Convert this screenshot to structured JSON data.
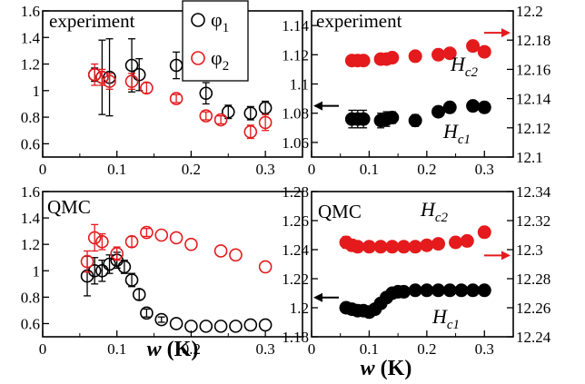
{
  "colors": {
    "phi1": "#000000",
    "phi2": "#e41a1c",
    "hc1": "#000000",
    "hc2": "#e41a1c",
    "arrow_hc1": "#000000",
    "arrow_hc2": "#e41a1c"
  },
  "xlabel": {
    "w": "w",
    "unit": " (K)"
  },
  "legend": {
    "placement": "top-right",
    "items": [
      {
        "symbol": "φ",
        "sub": "1",
        "series": "phi1"
      },
      {
        "symbol": "φ",
        "sub": "2",
        "series": "phi2"
      }
    ]
  },
  "chart_data": [
    {
      "id": "tl",
      "type": "scatter",
      "label": "experiment",
      "xlim": [
        0,
        0.35
      ],
      "ylim": [
        0.5,
        1.6
      ],
      "xticks": [
        "0",
        "0.1",
        "0.2",
        "0.3"
      ],
      "yticks": [
        "0.6",
        "0.8",
        "1",
        "1.2",
        "1.4",
        "1.6"
      ],
      "series": [
        {
          "key": "phi1",
          "name": "φ1",
          "style": "open",
          "points": [
            {
              "x": 0.07,
              "y": 1.12,
              "err": 0.05
            },
            {
              "x": 0.08,
              "y": 1.1,
              "err": 0.28
            },
            {
              "x": 0.09,
              "y": 1.1,
              "err": 0.29
            },
            {
              "x": 0.12,
              "y": 1.19,
              "err": 0.2
            },
            {
              "x": 0.13,
              "y": 1.12,
              "err": 0.12
            },
            {
              "x": 0.18,
              "y": 1.19,
              "err": 0.1
            },
            {
              "x": 0.22,
              "y": 0.98,
              "err": 0.08
            },
            {
              "x": 0.25,
              "y": 0.84,
              "err": 0.05
            },
            {
              "x": 0.28,
              "y": 0.83,
              "err": 0.05
            },
            {
              "x": 0.3,
              "y": 0.87,
              "err": 0.05
            }
          ]
        },
        {
          "key": "phi2",
          "name": "φ2",
          "style": "open",
          "points": [
            {
              "x": 0.07,
              "y": 1.12,
              "err": 0.08
            },
            {
              "x": 0.08,
              "y": 1.1,
              "err": 0.06
            },
            {
              "x": 0.09,
              "y": 1.07,
              "err": 0.06
            },
            {
              "x": 0.12,
              "y": 1.07,
              "err": 0.06
            },
            {
              "x": 0.14,
              "y": 1.02,
              "err": 0.04
            },
            {
              "x": 0.18,
              "y": 0.94,
              "err": 0.03
            },
            {
              "x": 0.22,
              "y": 0.81,
              "err": 0.03
            },
            {
              "x": 0.24,
              "y": 0.78,
              "err": 0.03
            },
            {
              "x": 0.28,
              "y": 0.69,
              "err": 0.05
            },
            {
              "x": 0.3,
              "y": 0.76,
              "err": 0.06
            }
          ]
        }
      ]
    },
    {
      "id": "tr",
      "type": "scatter",
      "label": "experiment",
      "xlim": [
        0,
        0.35
      ],
      "ylim": [
        1.05,
        1.15
      ],
      "ylim_right": [
        12.1,
        12.2
      ],
      "xticks": [
        "0",
        "0.1",
        "0.2",
        "0.3"
      ],
      "yticks": [
        "1.06",
        "1.08",
        "1.1",
        "1.12",
        "1.14"
      ],
      "yticks_right": [
        "12.1",
        "12.12",
        "12.14",
        "12.16",
        "12.18",
        "12.2"
      ],
      "series": [
        {
          "key": "hc1",
          "label": "H",
          "sub": "c1",
          "axis": "left",
          "style": "filled",
          "points": [
            {
              "x": 0.07,
              "y": 1.076,
              "err": 0.006
            },
            {
              "x": 0.08,
              "y": 1.076,
              "err": 0.006
            },
            {
              "x": 0.09,
              "y": 1.076,
              "err": 0.006
            },
            {
              "x": 0.12,
              "y": 1.075,
              "err": 0.005
            },
            {
              "x": 0.13,
              "y": 1.076,
              "err": 0.005
            },
            {
              "x": 0.14,
              "y": 1.077,
              "err": 0.004
            },
            {
              "x": 0.18,
              "y": 1.075,
              "err": 0.004
            },
            {
              "x": 0.22,
              "y": 1.081,
              "err": 0.003
            },
            {
              "x": 0.24,
              "y": 1.084,
              "err": 0.003
            },
            {
              "x": 0.28,
              "y": 1.085,
              "err": 0.003
            },
            {
              "x": 0.3,
              "y": 1.084,
              "err": 0.003
            }
          ]
        },
        {
          "key": "hc2",
          "label": "H",
          "sub": "c2",
          "axis": "right",
          "style": "filled",
          "points": [
            {
              "x": 0.07,
              "y": 12.166
            },
            {
              "x": 0.08,
              "y": 12.166
            },
            {
              "x": 0.09,
              "y": 12.166
            },
            {
              "x": 0.12,
              "y": 12.167
            },
            {
              "x": 0.13,
              "y": 12.167
            },
            {
              "x": 0.14,
              "y": 12.168
            },
            {
              "x": 0.18,
              "y": 12.169
            },
            {
              "x": 0.22,
              "y": 12.17
            },
            {
              "x": 0.24,
              "y": 12.171
            },
            {
              "x": 0.28,
              "y": 12.176
            },
            {
              "x": 0.3,
              "y": 12.172
            }
          ]
        }
      ],
      "arrows": {
        "hc1": {
          "y": 1.085,
          "dir": "left"
        },
        "hc2": {
          "y": 12.185,
          "dir": "right"
        }
      }
    },
    {
      "id": "bl",
      "type": "scatter",
      "label": "QMC",
      "xlim": [
        0,
        0.35
      ],
      "ylim": [
        0.5,
        1.6
      ],
      "xticks": [
        "0",
        "0.1",
        "0.2",
        "0.3"
      ],
      "yticks": [
        "0.6",
        "0.8",
        "1",
        "1.2",
        "1.4",
        "1.6"
      ],
      "series": [
        {
          "key": "phi1",
          "name": "φ1",
          "style": "open",
          "points": [
            {
              "x": 0.06,
              "y": 0.96,
              "err": 0.15
            },
            {
              "x": 0.07,
              "y": 1.0,
              "err": 0.1
            },
            {
              "x": 0.08,
              "y": 1.0,
              "err": 0.08
            },
            {
              "x": 0.09,
              "y": 1.05,
              "err": 0.07
            },
            {
              "x": 0.1,
              "y": 1.08,
              "err": 0.06
            },
            {
              "x": 0.11,
              "y": 1.03,
              "err": 0.05
            },
            {
              "x": 0.12,
              "y": 0.93,
              "err": 0.05
            },
            {
              "x": 0.13,
              "y": 0.82,
              "err": 0.04
            },
            {
              "x": 0.14,
              "y": 0.68,
              "err": 0.03
            },
            {
              "x": 0.16,
              "y": 0.63,
              "err": 0.02
            },
            {
              "x": 0.18,
              "y": 0.6
            },
            {
              "x": 0.2,
              "y": 0.58
            },
            {
              "x": 0.22,
              "y": 0.58
            },
            {
              "x": 0.24,
              "y": 0.58
            },
            {
              "x": 0.26,
              "y": 0.58
            },
            {
              "x": 0.28,
              "y": 0.59
            },
            {
              "x": 0.3,
              "y": 0.59
            }
          ]
        },
        {
          "key": "phi2",
          "name": "φ2",
          "style": "open",
          "points": [
            {
              "x": 0.06,
              "y": 1.07,
              "err": 0.08
            },
            {
              "x": 0.07,
              "y": 1.25,
              "err": 0.1
            },
            {
              "x": 0.08,
              "y": 1.22,
              "err": 0.06
            },
            {
              "x": 0.1,
              "y": 1.13,
              "err": 0.05
            },
            {
              "x": 0.12,
              "y": 1.22,
              "err": 0.04
            },
            {
              "x": 0.14,
              "y": 1.29,
              "err": 0.03
            },
            {
              "x": 0.16,
              "y": 1.27
            },
            {
              "x": 0.18,
              "y": 1.25
            },
            {
              "x": 0.2,
              "y": 1.2
            },
            {
              "x": 0.24,
              "y": 1.15
            },
            {
              "x": 0.26,
              "y": 1.12
            },
            {
              "x": 0.3,
              "y": 1.03
            }
          ]
        }
      ]
    },
    {
      "id": "br",
      "type": "scatter",
      "label": "QMC",
      "xlim": [
        0,
        0.35
      ],
      "ylim": [
        1.18,
        1.28
      ],
      "ylim_right": [
        12.24,
        12.34
      ],
      "xticks": [
        "0",
        "0.1",
        "0.2",
        "0.3"
      ],
      "yticks": [
        "1.18",
        "1.2",
        "1.22",
        "1.24",
        "1.26",
        "1.28"
      ],
      "yticks_right": [
        "12.24",
        "12.26",
        "12.28",
        "12.3",
        "12.32",
        "12.34"
      ],
      "series": [
        {
          "key": "hc1",
          "label": "H",
          "sub": "c1",
          "axis": "left",
          "style": "filled",
          "points": [
            {
              "x": 0.06,
              "y": 1.2
            },
            {
              "x": 0.07,
              "y": 1.199
            },
            {
              "x": 0.08,
              "y": 1.198
            },
            {
              "x": 0.09,
              "y": 1.198
            },
            {
              "x": 0.1,
              "y": 1.197
            },
            {
              "x": 0.11,
              "y": 1.199
            },
            {
              "x": 0.12,
              "y": 1.203
            },
            {
              "x": 0.13,
              "y": 1.207
            },
            {
              "x": 0.14,
              "y": 1.21
            },
            {
              "x": 0.15,
              "y": 1.211
            },
            {
              "x": 0.16,
              "y": 1.211
            },
            {
              "x": 0.18,
              "y": 1.212
            },
            {
              "x": 0.2,
              "y": 1.212
            },
            {
              "x": 0.22,
              "y": 1.212
            },
            {
              "x": 0.24,
              "y": 1.212
            },
            {
              "x": 0.26,
              "y": 1.212
            },
            {
              "x": 0.28,
              "y": 1.212
            },
            {
              "x": 0.3,
              "y": 1.212
            }
          ]
        },
        {
          "key": "hc2",
          "label": "H",
          "sub": "c2",
          "axis": "right",
          "style": "filled",
          "points": [
            {
              "x": 0.06,
              "y": 12.305,
              "err": 0.004
            },
            {
              "x": 0.07,
              "y": 12.303,
              "err": 0.004
            },
            {
              "x": 0.08,
              "y": 12.302
            },
            {
              "x": 0.1,
              "y": 12.302
            },
            {
              "x": 0.12,
              "y": 12.302
            },
            {
              "x": 0.14,
              "y": 12.302
            },
            {
              "x": 0.16,
              "y": 12.302
            },
            {
              "x": 0.18,
              "y": 12.302
            },
            {
              "x": 0.2,
              "y": 12.303
            },
            {
              "x": 0.22,
              "y": 12.304
            },
            {
              "x": 0.25,
              "y": 12.305
            },
            {
              "x": 0.27,
              "y": 12.306
            },
            {
              "x": 0.3,
              "y": 12.312
            }
          ]
        }
      ],
      "arrows": {
        "hc1": {
          "y": 1.207,
          "dir": "left"
        },
        "hc2": {
          "y": 12.296,
          "dir": "right"
        }
      }
    }
  ]
}
